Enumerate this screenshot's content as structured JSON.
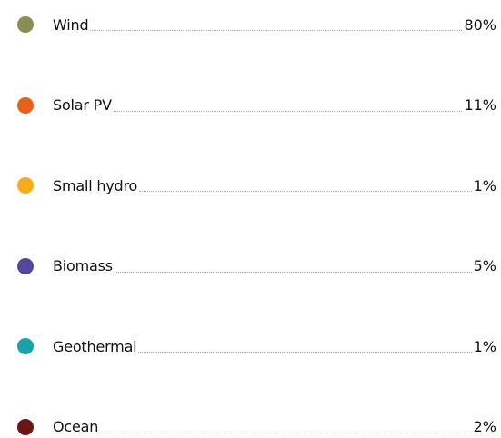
{
  "items": [
    {
      "label": "Wind",
      "color": "#8b8b55",
      "value": "80%"
    },
    {
      "label": "Solar PV",
      "color": "#e8601c",
      "value": "11%"
    },
    {
      "label": "Small hydro",
      "color": "#f6ad1d",
      "value": "1%"
    },
    {
      "label": "Biomass",
      "color": "#56479b",
      "value": "5%"
    },
    {
      "label": "Geothermal",
      "color": "#1aa2aa",
      "value": "1%"
    },
    {
      "label": "Ocean",
      "color": "#6a1717",
      "value": "2%"
    }
  ]
}
